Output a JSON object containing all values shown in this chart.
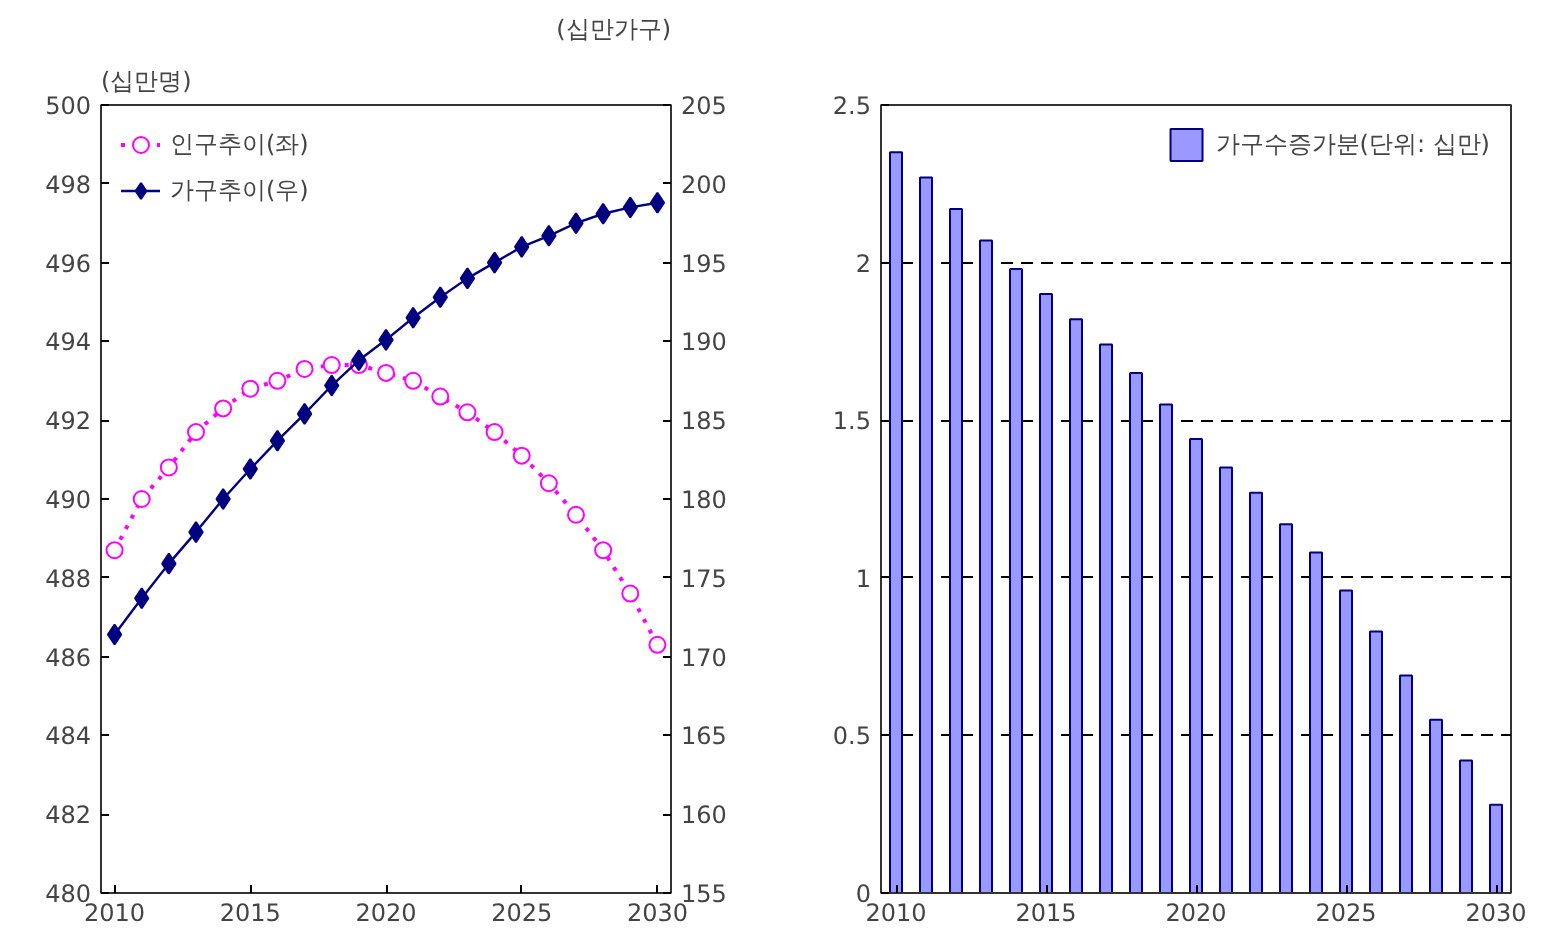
{
  "chart_data": [
    {
      "type": "line",
      "ylabel": "(십만명)",
      "y2label": "(십만가구)",
      "x": [
        2010,
        2011,
        2012,
        2013,
        2014,
        2015,
        2016,
        2017,
        2018,
        2019,
        2020,
        2021,
        2022,
        2023,
        2024,
        2025,
        2026,
        2027,
        2028,
        2029,
        2030
      ],
      "xlim": [
        2009.5,
        2030.5
      ],
      "xticks": [
        2010,
        2015,
        2020,
        2025,
        2030
      ],
      "ylim": [
        480,
        500
      ],
      "yticks": [
        480,
        482,
        484,
        486,
        488,
        490,
        492,
        494,
        496,
        498,
        500
      ],
      "y2lim": [
        155,
        205
      ],
      "y2ticks": [
        155,
        160,
        165,
        170,
        175,
        180,
        185,
        190,
        195,
        200,
        205
      ],
      "grid": false,
      "legend": "top left",
      "series": [
        {
          "name": "인구추이(좌)",
          "color": "#ff00ff",
          "marker": "circle",
          "line_style": "dotted",
          "values": [
            488.7,
            490.0,
            490.8,
            491.7,
            492.3,
            492.8,
            493.0,
            493.3,
            493.4,
            493.4,
            493.2,
            493.0,
            492.6,
            492.2,
            491.7,
            491.1,
            490.4,
            489.6,
            488.7,
            487.6,
            486.3
          ]
        },
        {
          "name": "가구추이(우)",
          "color": "#000080",
          "marker": "diamond",
          "line_style": "solid",
          "axis": "y2",
          "values": [
            171.4,
            173.7,
            175.9,
            177.9,
            180.0,
            181.9,
            183.7,
            185.4,
            187.2,
            188.8,
            190.1,
            191.5,
            192.8,
            194.0,
            195.0,
            196.0,
            196.7,
            197.5,
            198.1,
            198.5,
            198.8
          ]
        }
      ]
    },
    {
      "type": "bar",
      "x": [
        2010,
        2011,
        2012,
        2013,
        2014,
        2015,
        2016,
        2017,
        2018,
        2019,
        2020,
        2021,
        2022,
        2023,
        2024,
        2025,
        2026,
        2027,
        2028,
        2029,
        2030
      ],
      "xlim": [
        2009.5,
        2030.5
      ],
      "xticks": [
        2010,
        2015,
        2020,
        2025,
        2030
      ],
      "ylim": [
        0,
        2.5
      ],
      "yticks": [
        0,
        {
          "value": 0.5,
          "label": "0.5"
        },
        1,
        {
          "value": 1.5,
          "label": "1.5"
        },
        2,
        {
          "value": 2.5,
          "label": "2.5"
        }
      ],
      "grid": "y",
      "legend": "top right",
      "series": [
        {
          "name": "가구수증가분(단위: 십만)",
          "color": "#9999ff",
          "values": [
            2.35,
            2.27,
            2.17,
            2.07,
            1.98,
            1.9,
            1.82,
            1.74,
            1.65,
            1.55,
            1.44,
            1.35,
            1.27,
            1.17,
            1.08,
            0.96,
            0.83,
            0.69,
            0.55,
            0.42,
            0.28
          ]
        }
      ]
    }
  ]
}
